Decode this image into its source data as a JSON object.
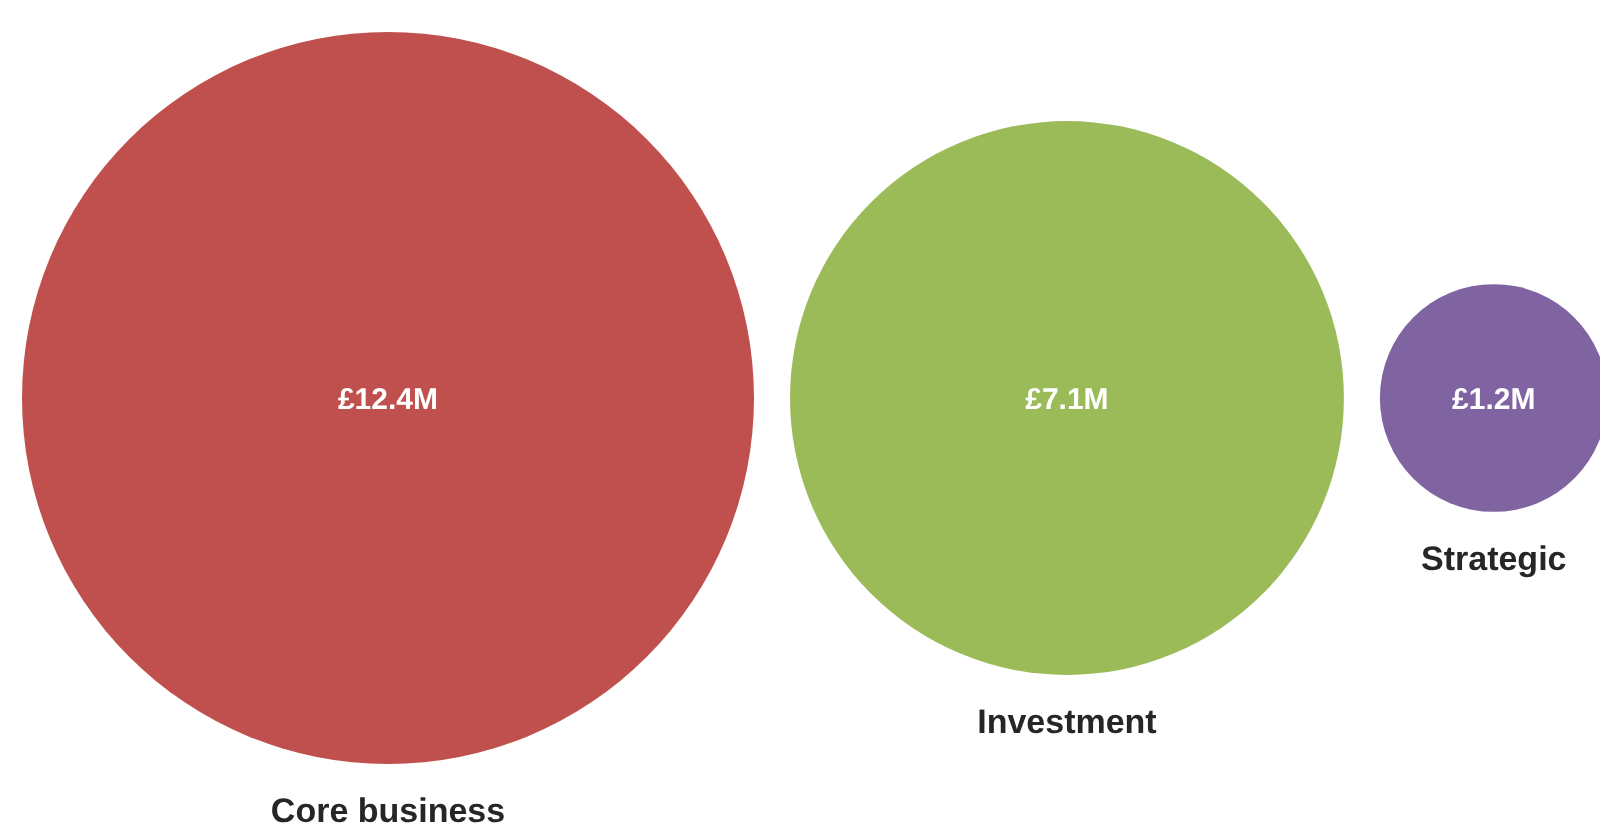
{
  "chart_data": {
    "type": "other",
    "categories": [
      "Core business",
      "Investment",
      "Strategic"
    ],
    "values": [
      12.4,
      7.1,
      1.2
    ],
    "value_labels": [
      "£12.4M",
      "£7.1M",
      "£1.2M"
    ],
    "colors": [
      "#c0504d",
      "#9bbb59",
      "#8064a2"
    ],
    "data_labels": true
  }
}
